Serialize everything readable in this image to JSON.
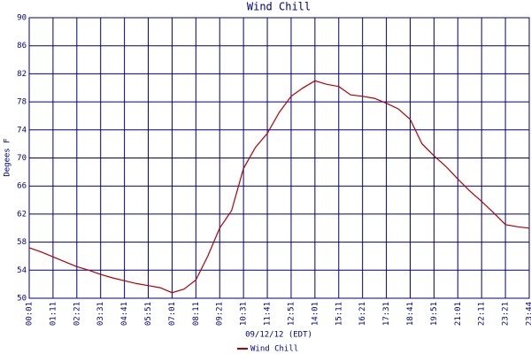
{
  "chart_data": {
    "type": "line",
    "title": "Wind Chill",
    "x_label": "09/12/12 (EDT)",
    "y_label": "Degees F",
    "categories": [
      "00:01",
      null,
      "01:11",
      null,
      "02:21",
      null,
      "03:31",
      null,
      "04:41",
      null,
      "05:51",
      null,
      "07:01",
      null,
      "08:11",
      null,
      "09:21",
      null,
      "10:31",
      null,
      "11:41",
      null,
      "12:51",
      null,
      "14:01",
      null,
      "15:11",
      null,
      "16:21",
      null,
      "17:31",
      null,
      "18:41",
      null,
      "19:51",
      null,
      "21:01",
      null,
      "22:11",
      null,
      "23:21",
      null,
      "23:44"
    ],
    "series": [
      {
        "name": "Wind Chill",
        "color": "#b00000",
        "values": [
          57.2,
          56.6,
          55.9,
          55.2,
          54.5,
          54.0,
          53.4,
          52.9,
          52.5,
          52.1,
          51.8,
          51.5,
          50.8,
          51.3,
          52.6,
          56.0,
          60.0,
          62.5,
          68.5,
          71.5,
          73.5,
          76.5,
          78.8,
          80.0,
          81.0,
          80.5,
          80.2,
          79.0,
          78.8,
          78.5,
          77.8,
          77.0,
          75.5,
          72.0,
          70.3,
          68.8,
          67.0,
          65.3,
          63.8,
          62.2,
          60.5,
          60.2,
          60.0
        ]
      }
    ],
    "ylim": [
      50,
      90
    ],
    "yticks": [
      50,
      54,
      58,
      62,
      66,
      70,
      74,
      78,
      82,
      86,
      90
    ],
    "grid": true,
    "legend": "bottom"
  }
}
